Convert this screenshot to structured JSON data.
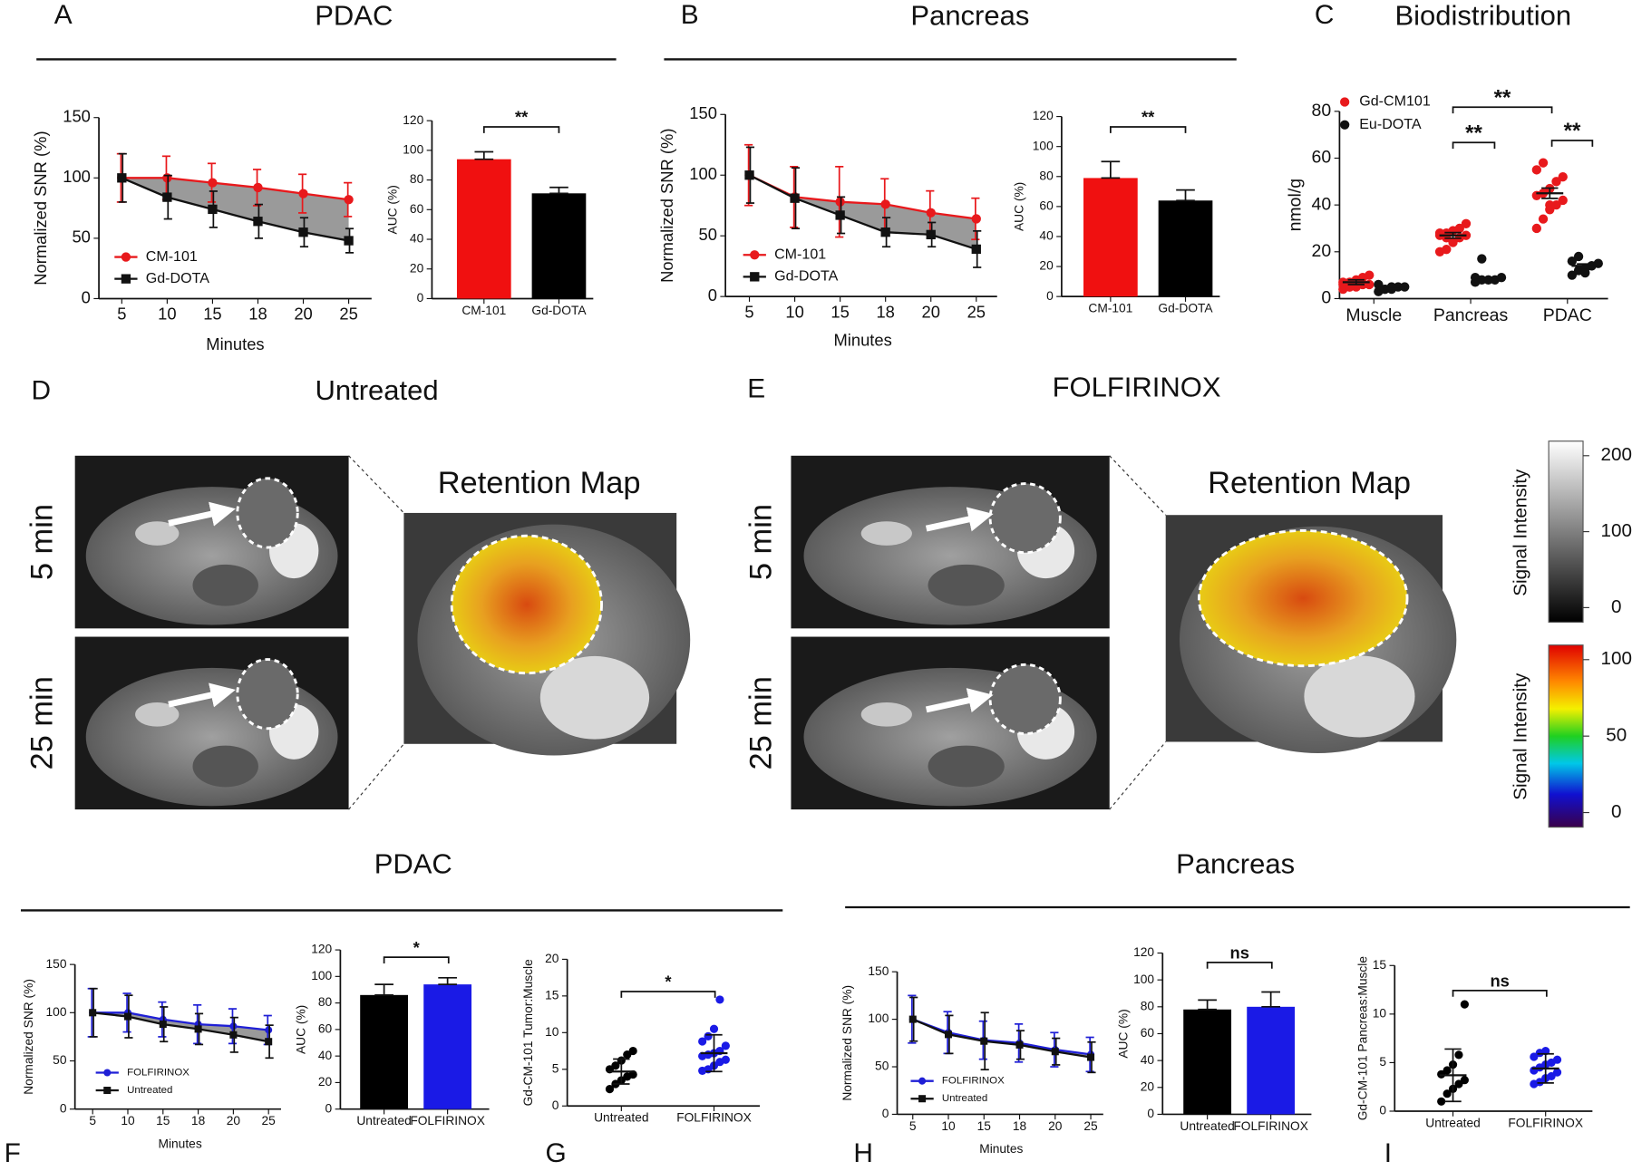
{
  "chart_data": [
    {
      "type": "line",
      "ylabel": "Normalized SNR (%)",
      "xlabel": "Minutes",
      "categories": [
        "5",
        "10",
        "15",
        "18",
        "20",
        "25"
      ],
      "series": [
        {
          "name": "CM-101",
          "color": "#e8191c",
          "marker": "circle",
          "values": [
            100,
            100,
            96,
            92,
            87,
            82
          ],
          "errors": [
            20,
            18,
            16,
            15,
            16,
            14
          ]
        },
        {
          "name": "Gd-DOTA",
          "color": "#111111",
          "marker": "square",
          "values": [
            100,
            84,
            74,
            64,
            55,
            48
          ],
          "errors": [
            20,
            18,
            15,
            14,
            12,
            10
          ]
        }
      ],
      "ylim": [
        0,
        150
      ],
      "yticks": [
        0,
        50,
        100,
        150
      ],
      "shade": "#9a9a9a"
    },
    {
      "type": "bar",
      "ylabel": "AUC (%)",
      "categories": [
        "CM-101",
        "Gd-DOTA"
      ],
      "values": [
        94,
        71
      ],
      "errors": [
        5,
        4
      ],
      "colors": [
        "#f01010",
        "#000000"
      ],
      "ylim": [
        0,
        120
      ],
      "yticks": [
        0,
        20,
        40,
        60,
        80,
        100,
        120
      ],
      "annotations": [
        "**"
      ]
    },
    {
      "type": "line",
      "ylabel": "Normalized SNR (%)",
      "xlabel": "Minutes",
      "categories": [
        "5",
        "10",
        "15",
        "18",
        "20",
        "25"
      ],
      "series": [
        {
          "name": "CM-101",
          "color": "#e8191c",
          "marker": "circle",
          "values": [
            100,
            82,
            78,
            76,
            69,
            64
          ],
          "errors": [
            25,
            25,
            29,
            21,
            18,
            17
          ]
        },
        {
          "name": "Gd-DOTA",
          "color": "#111111",
          "marker": "square",
          "values": [
            100,
            81,
            67,
            53,
            51,
            39
          ],
          "errors": [
            23,
            25,
            15,
            12,
            10,
            15
          ]
        }
      ],
      "ylim": [
        0,
        150
      ],
      "yticks": [
        0,
        50,
        100,
        150
      ],
      "shade": "#9a9a9a"
    },
    {
      "type": "bar",
      "ylabel": "AUC (%)",
      "categories": [
        "CM-101",
        "Gd-DOTA"
      ],
      "values": [
        79,
        64
      ],
      "errors": [
        11,
        7
      ],
      "colors": [
        "#f01010",
        "#000000"
      ],
      "ylim": [
        0,
        120
      ],
      "yticks": [
        0,
        20,
        40,
        60,
        80,
        100,
        120
      ],
      "annotations": [
        "**"
      ]
    },
    {
      "type": "strip",
      "title": "Biodistribution",
      "ylabel": "nmol/g",
      "categories": [
        "Muscle",
        "Pancreas",
        "PDAC"
      ],
      "series": [
        {
          "name": "Gd-CM101",
          "color": "#e8191c",
          "points": [
            [
              4,
              5,
              5,
              6,
              6,
              7,
              7,
              8,
              9,
              10,
              6,
              5
            ],
            [
              20,
              21,
              24,
              26,
              27,
              28,
              28,
              29,
              30,
              32,
              27,
              26
            ],
            [
              30,
              34,
              38,
              40,
              42,
              44,
              45,
              47,
              50,
              52,
              55,
              58,
              40
            ]
          ],
          "means": [
            7,
            27,
            45
          ],
          "errors": [
            1,
            1.2,
            2.2
          ]
        },
        {
          "name": "Eu-DOTA",
          "color": "#111111",
          "points": [
            [
              3,
              4,
              4,
              5,
              5,
              6,
              4,
              5
            ],
            [
              7,
              8,
              8,
              8,
              9,
              9,
              17
            ],
            [
              10,
              12,
              13,
              14,
              15,
              16,
              18,
              11,
              14
            ]
          ],
          "means": [
            4.5,
            8,
            14
          ],
          "errors": [
            0.4,
            1,
            0.8
          ]
        }
      ],
      "ylim": [
        0,
        80
      ],
      "yticks": [
        0,
        20,
        40,
        60,
        80
      ],
      "annotations": [
        "**",
        "**",
        "**"
      ]
    },
    {
      "type": "line",
      "ylabel": "Normalized SNR (%)",
      "xlabel": "Minutes",
      "categories": [
        "5",
        "10",
        "15",
        "18",
        "20",
        "25"
      ],
      "series": [
        {
          "name": "FOLFIRINOX",
          "color": "#1f1fd6",
          "marker": "circle",
          "values": [
            100,
            100,
            93,
            88,
            86,
            82
          ],
          "errors": [
            25,
            20,
            18,
            20,
            18,
            15
          ]
        },
        {
          "name": "Untreated",
          "color": "#111111",
          "marker": "square",
          "values": [
            100,
            96,
            88,
            83,
            77,
            70
          ],
          "errors": [
            25,
            22,
            18,
            16,
            18,
            17
          ]
        }
      ],
      "ylim": [
        0,
        150
      ],
      "yticks": [
        0,
        50,
        100,
        150
      ],
      "shade": "#9a9a9a"
    },
    {
      "type": "bar",
      "ylabel": "AUC (%)",
      "categories": [
        "Untreated",
        "FOLFIRINOX"
      ],
      "values": [
        86,
        94
      ],
      "errors": [
        8,
        5
      ],
      "colors": [
        "#000000",
        "#1a1ae6"
      ],
      "ylim": [
        0,
        120
      ],
      "yticks": [
        0,
        20,
        40,
        60,
        80,
        100,
        120
      ],
      "annotations": [
        "*"
      ]
    },
    {
      "type": "strip",
      "ylabel": "Gd-CM-101 Tumor:Muscle",
      "categories": [
        "Untreated",
        "FOLFIRINOX"
      ],
      "series": [
        {
          "colors": [
            "#000000",
            "#1a1ae6"
          ],
          "points": [
            [
              2.3,
              3,
              3.5,
              4,
              4.3,
              5,
              5.5,
              6.2,
              7,
              7.5
            ],
            [
              4.8,
              5,
              5.5,
              6,
              6.3,
              6.8,
              7,
              7.2,
              7.5,
              8.2,
              8.8,
              9.5,
              10.5,
              14.5
            ]
          ],
          "means": [
            4.7,
            7.2
          ],
          "errors": [
            1.7,
            2.5
          ]
        }
      ],
      "ylim": [
        0,
        20
      ],
      "yticks": [
        0,
        5,
        10,
        15,
        20
      ],
      "annotations": [
        "*"
      ]
    },
    {
      "type": "line",
      "ylabel": "Normalized SNR (%)",
      "xlabel": "Minutes",
      "categories": [
        "5",
        "10",
        "15",
        "18",
        "20",
        "25"
      ],
      "series": [
        {
          "name": "FOLFIRINOX",
          "color": "#1f1fd6",
          "marker": "circle",
          "values": [
            100,
            86,
            78,
            75,
            68,
            63
          ],
          "errors": [
            25,
            22,
            20,
            20,
            18,
            18
          ]
        },
        {
          "name": "Untreated",
          "color": "#111111",
          "marker": "square",
          "values": [
            100,
            84,
            77,
            73,
            66,
            60
          ],
          "errors": [
            23,
            20,
            30,
            15,
            14,
            16
          ]
        }
      ],
      "ylim": [
        0,
        150
      ],
      "yticks": [
        0,
        50,
        100,
        150
      ],
      "shade": "#9a9a9a"
    },
    {
      "type": "bar",
      "ylabel": "AUC (%)",
      "categories": [
        "Untreated",
        "FOLFIRINOX"
      ],
      "values": [
        78,
        80
      ],
      "errors": [
        7,
        11
      ],
      "colors": [
        "#000000",
        "#1a1ae6"
      ],
      "ylim": [
        0,
        120
      ],
      "yticks": [
        0,
        20,
        40,
        60,
        80,
        100,
        120
      ],
      "annotations": [
        "ns"
      ]
    },
    {
      "type": "strip",
      "ylabel": "Gd-CM-101 Pancreas:Muscle",
      "categories": [
        "Untreated",
        "FOLFIRINOX"
      ],
      "series": [
        {
          "colors": [
            "#000000",
            "#1a1ae6"
          ],
          "points": [
            [
              1,
              1.8,
              2.3,
              2.8,
              3.2,
              3.8,
              4.2,
              4.8,
              5.8,
              11
            ],
            [
              2.8,
              3,
              3.4,
              3.6,
              4,
              4.2,
              4.5,
              4.8,
              5,
              5.3,
              5.6,
              6,
              6.2
            ]
          ],
          "means": [
            3.7,
            4.4
          ],
          "errors": [
            2.7,
            1.5
          ]
        }
      ],
      "ylim": [
        0,
        15
      ],
      "yticks": [
        0,
        5,
        10,
        15
      ],
      "annotations": [
        "ns"
      ]
    }
  ],
  "figure": {
    "panel_letters": [
      "A",
      "B",
      "C",
      "D",
      "E",
      "F",
      "G",
      "H",
      "I"
    ],
    "headers": [
      "PDAC",
      "Pancreas",
      "Untreated",
      "FOLFIRINOX",
      "PDAC",
      "Pancreas"
    ],
    "image_labels": [
      "5 min",
      "25 min",
      "Retention Map",
      "5 min",
      "25 min",
      "Retention Map"
    ],
    "colorbars": [
      {
        "label": "Signal Intensity",
        "lim": [
          0,
          200
        ],
        "ticks": [
          0,
          100,
          200
        ]
      },
      {
        "label": "Signal Intensity",
        "lim": [
          0,
          100
        ],
        "ticks": [
          0,
          50,
          100
        ]
      }
    ]
  }
}
